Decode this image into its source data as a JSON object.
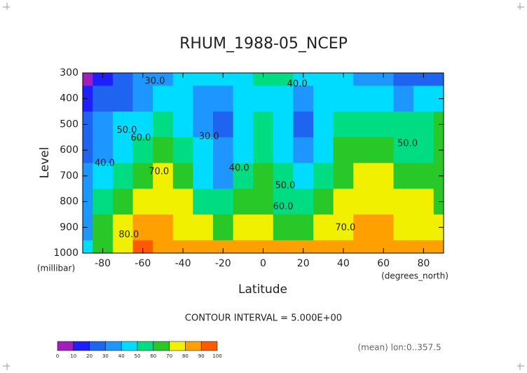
{
  "chart_data": {
    "type": "contour",
    "title": "RHUM_1988-05_NCEP",
    "x_label": "Latitude",
    "y_label": "Level",
    "x_unit": "(degrees_north)",
    "y_unit": "(millibar)",
    "x": [
      -90,
      -80,
      -70,
      -60,
      -50,
      -40,
      -30,
      -20,
      -10,
      0,
      10,
      20,
      30,
      40,
      50,
      60,
      70,
      80,
      90
    ],
    "y": [
      300,
      400,
      500,
      600,
      700,
      800,
      900,
      1000
    ],
    "z": [
      [
        8,
        15,
        22,
        30,
        38,
        42,
        45,
        45,
        48,
        52,
        55,
        48,
        44,
        40,
        35,
        30,
        25,
        22,
        22
      ],
      [
        15,
        22,
        28,
        35,
        42,
        45,
        35,
        30,
        40,
        48,
        45,
        32,
        42,
        48,
        45,
        40,
        38,
        42,
        45
      ],
      [
        20,
        30,
        40,
        48,
        52,
        48,
        35,
        28,
        40,
        50,
        42,
        28,
        42,
        52,
        58,
        55,
        50,
        55,
        60
      ],
      [
        25,
        38,
        48,
        55,
        60,
        52,
        42,
        30,
        42,
        55,
        48,
        35,
        48,
        60,
        62,
        60,
        55,
        52,
        62
      ],
      [
        30,
        45,
        58,
        68,
        70,
        62,
        48,
        38,
        50,
        62,
        52,
        45,
        55,
        65,
        70,
        70,
        65,
        62,
        65
      ],
      [
        35,
        55,
        68,
        78,
        75,
        70,
        58,
        52,
        60,
        68,
        55,
        52,
        62,
        72,
        75,
        75,
        72,
        70,
        68
      ],
      [
        38,
        60,
        75,
        85,
        80,
        75,
        70,
        68,
        72,
        75,
        62,
        68,
        72,
        78,
        82,
        80,
        78,
        76,
        72
      ],
      [
        40,
        62,
        78,
        92,
        85,
        82,
        80,
        82,
        82,
        82,
        80,
        80,
        82,
        85,
        88,
        88,
        85,
        85,
        80
      ]
    ],
    "xlim": [
      -90,
      90
    ],
    "ylim": [
      1000,
      300
    ],
    "xticks": [
      -80,
      -60,
      -40,
      -20,
      0,
      20,
      40,
      60,
      80
    ],
    "yticks": [
      300,
      400,
      500,
      600,
      700,
      800,
      900,
      1000
    ],
    "levels": [
      0,
      10,
      20,
      30,
      40,
      50,
      60,
      70,
      80,
      90,
      100
    ],
    "colors": [
      "#a01ebe",
      "#1e1eff",
      "#1e64f0",
      "#1e96ff",
      "#00dcff",
      "#00dc82",
      "#28c828",
      "#f0f000",
      "#ffa000",
      "#ff5a00",
      "#f00000"
    ],
    "contour_labels": [
      {
        "value": 30,
        "label": "30.0",
        "x": -54,
        "y": 333
      },
      {
        "value": 40,
        "label": "40.0",
        "x": 17,
        "y": 344
      },
      {
        "value": 50,
        "label": "50.0",
        "x": -68,
        "y": 523
      },
      {
        "value": 60,
        "label": "60.0",
        "x": -61,
        "y": 553
      },
      {
        "value": 40,
        "label": "40.0",
        "x": -79,
        "y": 651
      },
      {
        "value": 30,
        "label": "30.0",
        "x": -27,
        "y": 548
      },
      {
        "value": 40,
        "label": "40.0",
        "x": -12,
        "y": 670
      },
      {
        "value": 70,
        "label": "70.0",
        "x": -52,
        "y": 684
      },
      {
        "value": 50,
        "label": "50.0",
        "x": 11,
        "y": 739
      },
      {
        "value": 60,
        "label": "60.0",
        "x": 10,
        "y": 820
      },
      {
        "value": 70,
        "label": "70.0",
        "x": 41,
        "y": 902
      },
      {
        "value": 80,
        "label": "80.0",
        "x": -67,
        "y": 929
      },
      {
        "value": 50,
        "label": "50.0",
        "x": 72,
        "y": 575
      }
    ],
    "contour_interval": "CONTOUR INTERVAL = 5.000E+00",
    "note": "(mean) lon:0..357.5"
  }
}
